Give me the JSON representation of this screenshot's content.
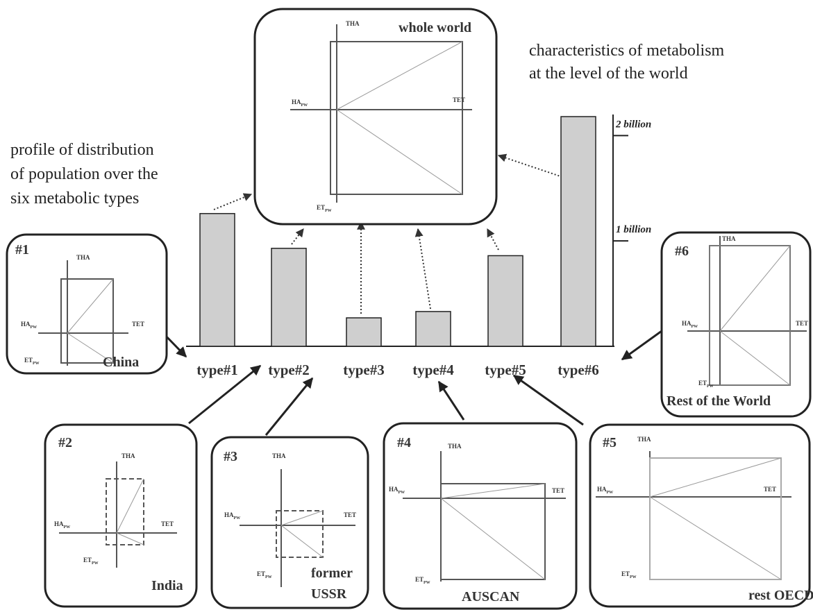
{
  "captions": {
    "world": [
      "characteristics of metabolism",
      "at the level of the world"
    ],
    "profile": [
      "profile of distribution",
      "of population over the",
      "six metabolic types"
    ]
  },
  "axis_labels": {
    "tha": "THA",
    "ha": "HA",
    "pw": "PW",
    "tet": "TET",
    "et": "ET"
  },
  "world_panel": {
    "title": "whole world"
  },
  "chart_data": {
    "type": "bar",
    "categories": [
      "type#1",
      "type#2",
      "type#3",
      "type#4",
      "type#5",
      "type#6"
    ],
    "values": [
      1.26,
      0.93,
      0.27,
      0.33,
      0.86,
      2.18
    ],
    "color": "#cfcfcf",
    "ylim": [
      0,
      2.2
    ],
    "yticks": [
      {
        "value": 1,
        "label": "1 billion"
      },
      {
        "value": 2,
        "label": "2 billion"
      }
    ]
  },
  "panels": [
    {
      "number": "#1",
      "name": [
        "China"
      ]
    },
    {
      "number": "#2",
      "name": [
        "India"
      ]
    },
    {
      "number": "#3",
      "name": [
        "former",
        "USSR"
      ]
    },
    {
      "number": "#4",
      "name": [
        "AUSCAN"
      ]
    },
    {
      "number": "#5",
      "name": [
        "rest OECD"
      ]
    },
    {
      "number": "#6",
      "name": [
        "Rest of the World"
      ]
    }
  ]
}
